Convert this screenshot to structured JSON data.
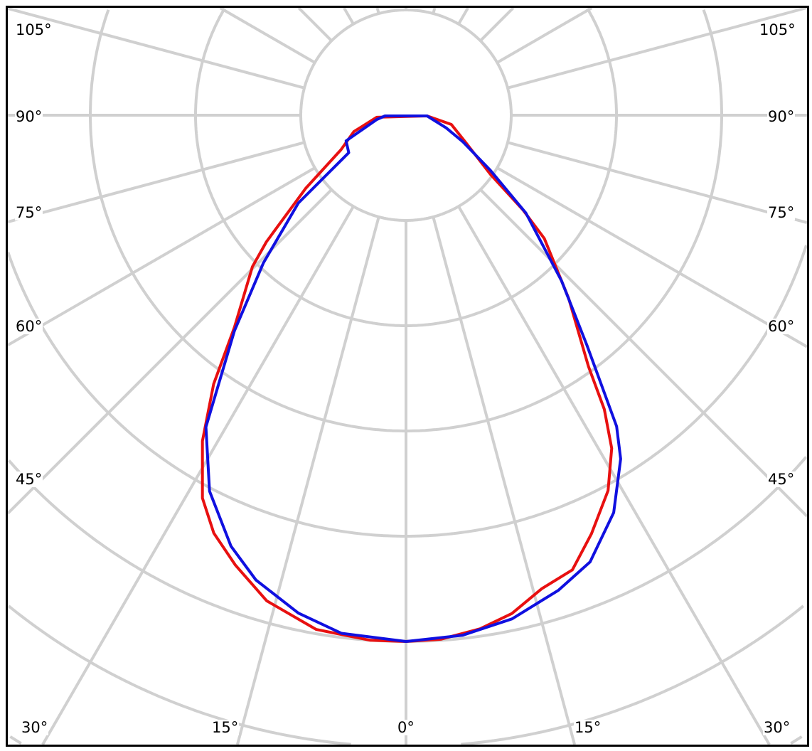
{
  "chart_data": {
    "type": "polar-line",
    "angle_zero": "bottom",
    "grid": true,
    "ring_count": 8,
    "spoke_step_deg": 15,
    "angle_labels": {
      "left": [
        "105°",
        "90°",
        "75°",
        "60°",
        "45°"
      ],
      "right": [
        "105°",
        "90°",
        "75°",
        "60°",
        "45°"
      ],
      "bottom": [
        "30°",
        "15°",
        "0°",
        "15°",
        "30°"
      ]
    },
    "series": [
      {
        "color": "#e81010",
        "points": [
          [
            -86,
            0.28
          ],
          [
            -72.5,
            0.52
          ],
          [
            -62,
            0.7
          ],
          [
            -53.9,
            1.18
          ],
          [
            -47.8,
            1.79
          ],
          [
            -45.4,
            2.05
          ],
          [
            -39,
            2.59
          ],
          [
            -35.6,
            3.14
          ],
          [
            -32,
            3.65
          ],
          [
            -28,
            4.12
          ],
          [
            -24.7,
            4.37
          ],
          [
            -20.8,
            4.57
          ],
          [
            -16,
            4.8
          ],
          [
            -9.9,
            4.96
          ],
          [
            -3.9,
            5.0
          ],
          [
            0,
            5.0
          ],
          [
            3.8,
            4.99
          ],
          [
            8.2,
            4.93
          ],
          [
            12,
            4.84
          ],
          [
            16,
            4.68
          ],
          [
            20.1,
            4.6
          ],
          [
            23.9,
            4.35
          ],
          [
            28.3,
            4.05
          ],
          [
            31.7,
            3.72
          ],
          [
            34,
            3.37
          ],
          [
            36,
            2.95
          ],
          [
            41.6,
            2.33
          ],
          [
            48.3,
            1.76
          ],
          [
            51,
            1.43
          ],
          [
            55,
            0.98
          ],
          [
            65.7,
            0.62
          ],
          [
            78.5,
            0.44
          ],
          [
            88,
            0.2
          ]
        ]
      },
      {
        "color": "#1010e0",
        "points": [
          [
            -88,
            0.2
          ],
          [
            -81.7,
            0.28
          ],
          [
            -66.8,
            0.62
          ],
          [
            -56.8,
            0.65
          ],
          [
            -50.8,
            1.32
          ],
          [
            -44,
            1.95
          ],
          [
            -38.5,
            2.62
          ],
          [
            -32.7,
            3.52
          ],
          [
            -27.6,
            4.03
          ],
          [
            -22.1,
            4.42
          ],
          [
            -17.9,
            4.64
          ],
          [
            -12.2,
            4.84
          ],
          [
            -7.1,
            4.96
          ],
          [
            0,
            5.0
          ],
          [
            6.2,
            4.97
          ],
          [
            11.9,
            4.89
          ],
          [
            17.8,
            4.74
          ],
          [
            22.4,
            4.59
          ],
          [
            27.6,
            4.26
          ],
          [
            32,
            3.85
          ],
          [
            34.1,
            3.57
          ],
          [
            38.2,
            2.78
          ],
          [
            43.2,
            2.16
          ],
          [
            50.8,
            1.47
          ],
          [
            56.8,
            0.96
          ],
          [
            64.9,
            0.6
          ],
          [
            72.5,
            0.4
          ],
          [
            88,
            0.2
          ]
        ]
      }
    ]
  }
}
